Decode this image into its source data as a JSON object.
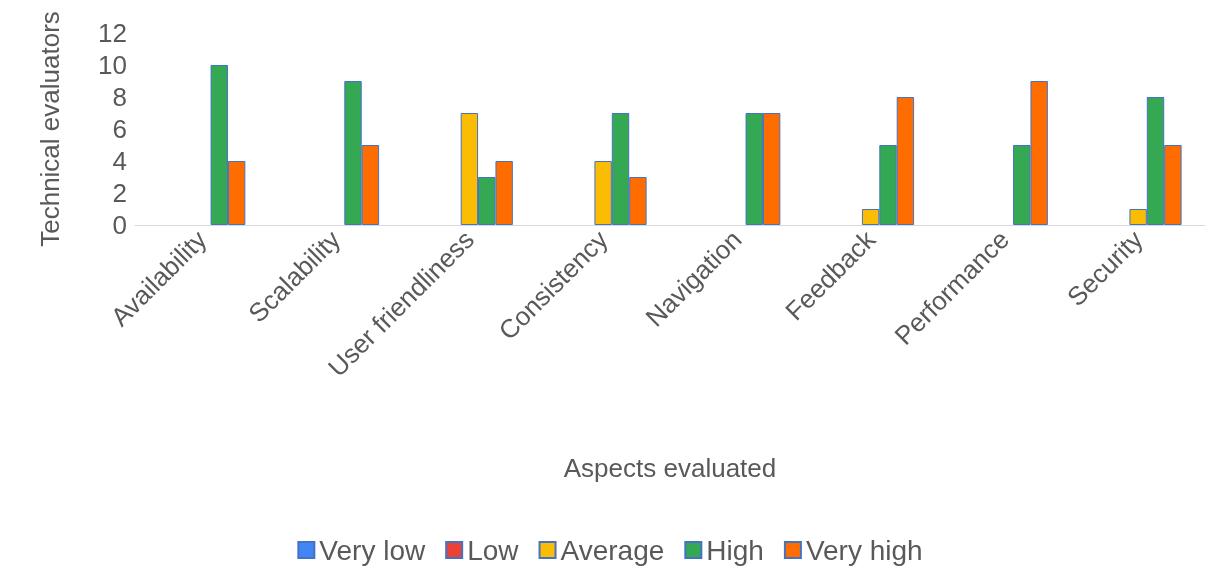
{
  "chart_data": {
    "type": "bar",
    "xlabel": "Aspects evaluated",
    "ylabel": "Technical evaluators",
    "categories": [
      "Availability",
      "Scalability",
      "User friendliness",
      "Consistency",
      "Navigation",
      "Feedback",
      "Performance",
      "Security"
    ],
    "series": [
      {
        "name": "Very low",
        "color": "#4285f4",
        "values": [
          0,
          0,
          0,
          0,
          0,
          0,
          0,
          0
        ]
      },
      {
        "name": "Low",
        "color": "#ea4335",
        "values": [
          0,
          0,
          0,
          0,
          0,
          0,
          0,
          0
        ]
      },
      {
        "name": "Average",
        "color": "#fbbc04",
        "values": [
          0,
          0,
          7,
          4,
          0,
          1,
          0,
          1
        ]
      },
      {
        "name": "High",
        "color": "#34a853",
        "values": [
          10,
          9,
          3,
          7,
          7,
          5,
          5,
          8
        ]
      },
      {
        "name": "Very high",
        "color": "#ff6d01",
        "values": [
          4,
          5,
          4,
          3,
          7,
          8,
          9,
          5
        ]
      }
    ],
    "ylim": [
      0,
      12
    ],
    "yticks": [
      0,
      2,
      4,
      6,
      8,
      10,
      12
    ],
    "grid": false,
    "legend": "bottom"
  }
}
